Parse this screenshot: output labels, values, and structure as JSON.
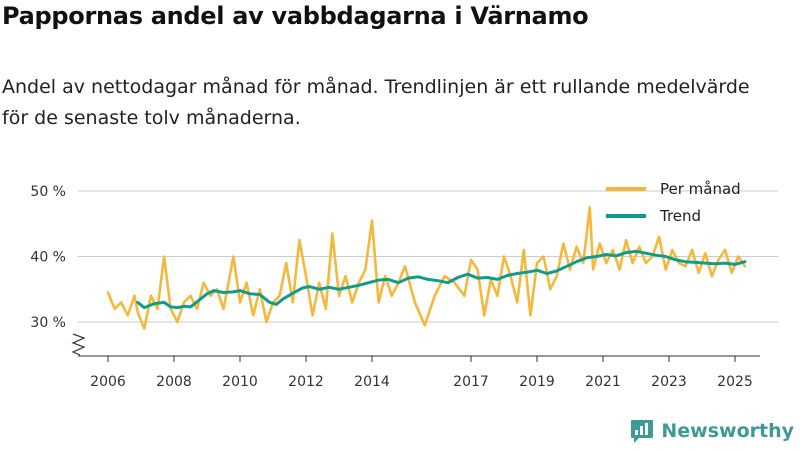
{
  "title": "Pappornas andel av vabbdagarna i Värnamo",
  "subtitle": "Andel av nettodagar månad för månad. Trendlinjen är ett rullande medelvärde för de senaste tolv månaderna.",
  "brand": {
    "name": "Newsworthy"
  },
  "colors": {
    "monthly": "#f5b83d",
    "trend": "#0e9c8c",
    "grid": "#cccccc",
    "brand": "#3d9a97"
  },
  "chart_data": {
    "type": "line",
    "title": "Pappornas andel av vabbdagarna i Värnamo",
    "xlabel": "",
    "ylabel": "",
    "ylim": [
      25,
      52
    ],
    "xlim": [
      2005.5,
      2025.9
    ],
    "y_ticks": [
      30,
      40,
      50
    ],
    "y_tick_labels": [
      "30 %",
      "40 %",
      "50 %"
    ],
    "x_ticks": [
      2006,
      2008,
      2010,
      2012,
      2014,
      2017,
      2019,
      2021,
      2023,
      2025
    ],
    "x_tick_labels": [
      "2006",
      "2008",
      "2010",
      "2012",
      "2014",
      "2017",
      "2019",
      "2021",
      "2023",
      "2025"
    ],
    "axis_break": true,
    "grid": true,
    "legend_position": "top-right",
    "series": [
      {
        "name": "Per månad",
        "color": "#f5b83d",
        "x": [
          2006.0,
          2006.2,
          2006.4,
          2006.6,
          2006.8,
          2006.9,
          2007.1,
          2007.3,
          2007.5,
          2007.7,
          2007.9,
          2008.1,
          2008.3,
          2008.5,
          2008.7,
          2008.9,
          2009.1,
          2009.3,
          2009.5,
          2009.8,
          2010.0,
          2010.2,
          2010.4,
          2010.6,
          2010.8,
          2011.0,
          2011.2,
          2011.4,
          2011.6,
          2011.8,
          2012.0,
          2012.2,
          2012.4,
          2012.6,
          2012.8,
          2013.0,
          2013.2,
          2013.4,
          2013.6,
          2013.8,
          2014.0,
          2014.2,
          2014.4,
          2014.6,
          2014.8,
          2015.0,
          2015.3,
          2015.6,
          2015.9,
          2016.2,
          2016.5,
          2016.8,
          2017.0,
          2017.2,
          2017.4,
          2017.6,
          2017.8,
          2018.0,
          2018.2,
          2018.4,
          2018.6,
          2018.8,
          2019.0,
          2019.2,
          2019.4,
          2019.6,
          2019.8,
          2020.0,
          2020.2,
          2020.4,
          2020.6,
          2020.7,
          2020.9,
          2021.1,
          2021.3,
          2021.5,
          2021.7,
          2021.9,
          2022.1,
          2022.3,
          2022.5,
          2022.7,
          2022.9,
          2023.1,
          2023.3,
          2023.5,
          2023.7,
          2023.9,
          2024.1,
          2024.3,
          2024.5,
          2024.7,
          2024.9,
          2025.1,
          2025.3
        ],
        "values": [
          34.5,
          32.0,
          33.0,
          31.0,
          34.0,
          31.5,
          29.0,
          34.0,
          32.0,
          40.0,
          32.0,
          30.0,
          33.0,
          34.0,
          32.0,
          36.0,
          34.0,
          35.0,
          32.0,
          40.0,
          33.0,
          36.0,
          31.0,
          35.0,
          30.0,
          33.0,
          34.0,
          39.0,
          33.0,
          42.5,
          37.0,
          31.0,
          36.0,
          32.0,
          43.5,
          34.0,
          37.0,
          33.0,
          36.0,
          38.0,
          45.5,
          33.0,
          37.0,
          34.0,
          36.0,
          38.5,
          33.0,
          29.5,
          34.0,
          37.0,
          36.0,
          34.0,
          39.5,
          38.0,
          31.0,
          36.5,
          34.0,
          40.0,
          37.0,
          33.0,
          41.0,
          31.0,
          39.0,
          40.0,
          35.0,
          37.0,
          42.0,
          38.0,
          41.5,
          39.0,
          47.5,
          38.0,
          42.0,
          39.0,
          41.0,
          38.0,
          42.5,
          39.0,
          41.5,
          39.0,
          40.0,
          43.0,
          38.0,
          41.0,
          39.0,
          38.5,
          41.0,
          37.5,
          40.5,
          37.0,
          39.5,
          41.0,
          37.5,
          40.0,
          38.5
        ]
      },
      {
        "name": "Trend",
        "color": "#0e9c8c",
        "x": [
          2006.9,
          2007.1,
          2007.4,
          2007.7,
          2007.9,
          2008.1,
          2008.3,
          2008.5,
          2008.8,
          2009.0,
          2009.2,
          2009.5,
          2009.8,
          2010.0,
          2010.3,
          2010.6,
          2010.9,
          2011.1,
          2011.3,
          2011.6,
          2011.9,
          2012.1,
          2012.4,
          2012.7,
          2013.0,
          2013.3,
          2013.6,
          2013.9,
          2014.2,
          2014.5,
          2014.8,
          2015.1,
          2015.4,
          2015.7,
          2016.0,
          2016.3,
          2016.6,
          2016.9,
          2017.2,
          2017.5,
          2017.8,
          2018.1,
          2018.4,
          2018.7,
          2019.0,
          2019.3,
          2019.6,
          2019.9,
          2020.2,
          2020.5,
          2020.8,
          2021.1,
          2021.4,
          2021.7,
          2022.0,
          2022.3,
          2022.6,
          2022.9,
          2023.2,
          2023.5,
          2023.8,
          2024.1,
          2024.4,
          2024.7,
          2025.0,
          2025.3
        ],
        "values": [
          33.0,
          32.2,
          32.8,
          33.0,
          32.3,
          32.2,
          32.4,
          32.3,
          33.5,
          34.3,
          34.8,
          34.5,
          34.6,
          34.8,
          34.3,
          34.2,
          33.0,
          32.7,
          33.5,
          34.4,
          35.2,
          35.4,
          35.0,
          35.3,
          35.0,
          35.3,
          35.6,
          36.0,
          36.4,
          36.5,
          36.0,
          36.7,
          36.9,
          36.5,
          36.3,
          36.0,
          36.8,
          37.3,
          36.7,
          36.8,
          36.5,
          37.1,
          37.4,
          37.6,
          37.9,
          37.4,
          37.8,
          38.5,
          39.2,
          39.8,
          40.0,
          40.3,
          40.1,
          40.6,
          40.8,
          40.5,
          40.2,
          40.0,
          39.5,
          39.2,
          39.1,
          39.0,
          38.9,
          39.0,
          38.8,
          39.2
        ]
      }
    ]
  }
}
